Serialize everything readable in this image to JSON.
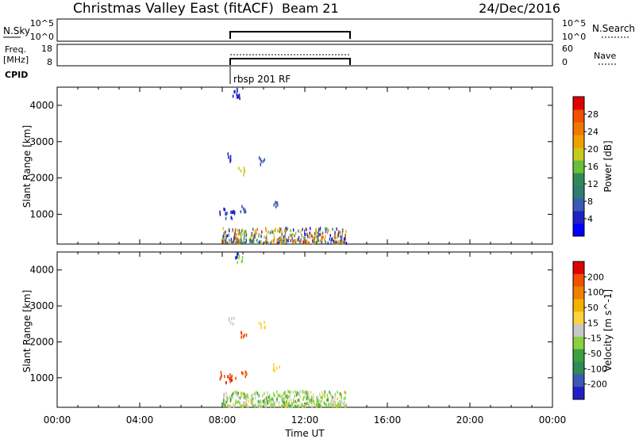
{
  "header": {
    "title": "Christmas Valley East (fitACF)",
    "beam": "Beam 21",
    "date": "24/Dec/2016"
  },
  "nsky_panel": {
    "left_label": "N.Sky",
    "left_ticks": [
      "10^5",
      "10^0"
    ],
    "right_ticks": [
      "10^5",
      "10^0"
    ],
    "right_label": "N.Search"
  },
  "freq_panel": {
    "left_label_1": "Freq.",
    "left_label_2": "[MHz]",
    "left_ticks": [
      "18",
      "8"
    ],
    "right_ticks": [
      "60",
      "0"
    ],
    "right_label": "Nave"
  },
  "cpid": {
    "label": "CPID",
    "program": "rbsp 201 RF"
  },
  "colors": {
    "power": [
      "#0000ff",
      "#2020c8",
      "#3a5ab4",
      "#2e7d6e",
      "#2e8b57",
      "#6abf3a",
      "#c8c820",
      "#f0a000",
      "#f07800",
      "#f05000",
      "#e00000"
    ],
    "velocity": [
      "#e00000",
      "#f05000",
      "#f08000",
      "#f5b000",
      "#ffd040",
      "#c8c8c8",
      "#8ad040",
      "#3aa040",
      "#2e8b57",
      "#3a5ab4",
      "#2020c8"
    ]
  },
  "chart_data": [
    {
      "type": "heatmap",
      "title": "",
      "xlabel": "Time UT",
      "ylabel": "Slant Range [km]",
      "xlim": [
        0,
        24
      ],
      "ylim": [
        180,
        4500
      ],
      "x_ticks": [
        "00:00",
        "04:00",
        "08:00",
        "12:00",
        "16:00",
        "20:00",
        "00:00"
      ],
      "y_ticks": [
        "1000",
        "2000",
        "3000",
        "4000"
      ],
      "colorbar": {
        "label": "Power [dB]",
        "ticks": [
          "4",
          "8",
          "12",
          "16",
          "20",
          "24",
          "28"
        ],
        "range": [
          0,
          30
        ]
      },
      "scatter_points": [
        {
          "t": 8.0,
          "r": 1100,
          "v": 4
        },
        {
          "t": 8.3,
          "r": 1000,
          "v": 6
        },
        {
          "t": 8.5,
          "r": 1050,
          "v": 5
        },
        {
          "t": 9.0,
          "r": 1150,
          "v": 7
        },
        {
          "t": 8.4,
          "r": 2600,
          "v": 5
        },
        {
          "t": 8.9,
          "r": 2200,
          "v": 18
        },
        {
          "t": 9.9,
          "r": 2500,
          "v": 6
        },
        {
          "t": 10.6,
          "r": 1300,
          "v": 6
        },
        {
          "t": 8.6,
          "r": 4400,
          "v": 5
        },
        {
          "t": 8.8,
          "r": 4300,
          "v": 5
        }
      ],
      "band": {
        "t_start": 8.0,
        "t_end": 14.0,
        "r_min": 180,
        "r_max": 600
      }
    },
    {
      "type": "heatmap",
      "title": "",
      "xlabel": "Time UT",
      "ylabel": "Slant Range [km]",
      "xlim": [
        0,
        24
      ],
      "ylim": [
        180,
        4500
      ],
      "x_ticks": [
        "00:00",
        "04:00",
        "08:00",
        "12:00",
        "16:00",
        "20:00",
        "00:00"
      ],
      "y_ticks": [
        "1000",
        "2000",
        "3000",
        "4000"
      ],
      "colorbar": {
        "label": "Velocity [m s^-1]",
        "ticks": [
          "200",
          "100",
          "50",
          "15",
          "-15",
          "-50",
          "-100",
          "-200"
        ],
        "range": [
          -250,
          250
        ]
      },
      "scatter_points": [
        {
          "t": 8.0,
          "r": 1100,
          "v": 200
        },
        {
          "t": 8.3,
          "r": 1000,
          "v": 220
        },
        {
          "t": 8.5,
          "r": 1050,
          "v": 180
        },
        {
          "t": 9.0,
          "r": 1150,
          "v": 200
        },
        {
          "t": 8.4,
          "r": 2600,
          "v": 5
        },
        {
          "t": 9.0,
          "r": 2200,
          "v": 200
        },
        {
          "t": 9.9,
          "r": 2500,
          "v": 60
        },
        {
          "t": 10.6,
          "r": 1300,
          "v": 60
        },
        {
          "t": 8.6,
          "r": 4450,
          "v": -220
        },
        {
          "t": 8.8,
          "r": 4350,
          "v": -40
        }
      ],
      "band": {
        "t_start": 8.0,
        "t_end": 14.0,
        "r_min": 180,
        "r_max": 600
      }
    }
  ]
}
